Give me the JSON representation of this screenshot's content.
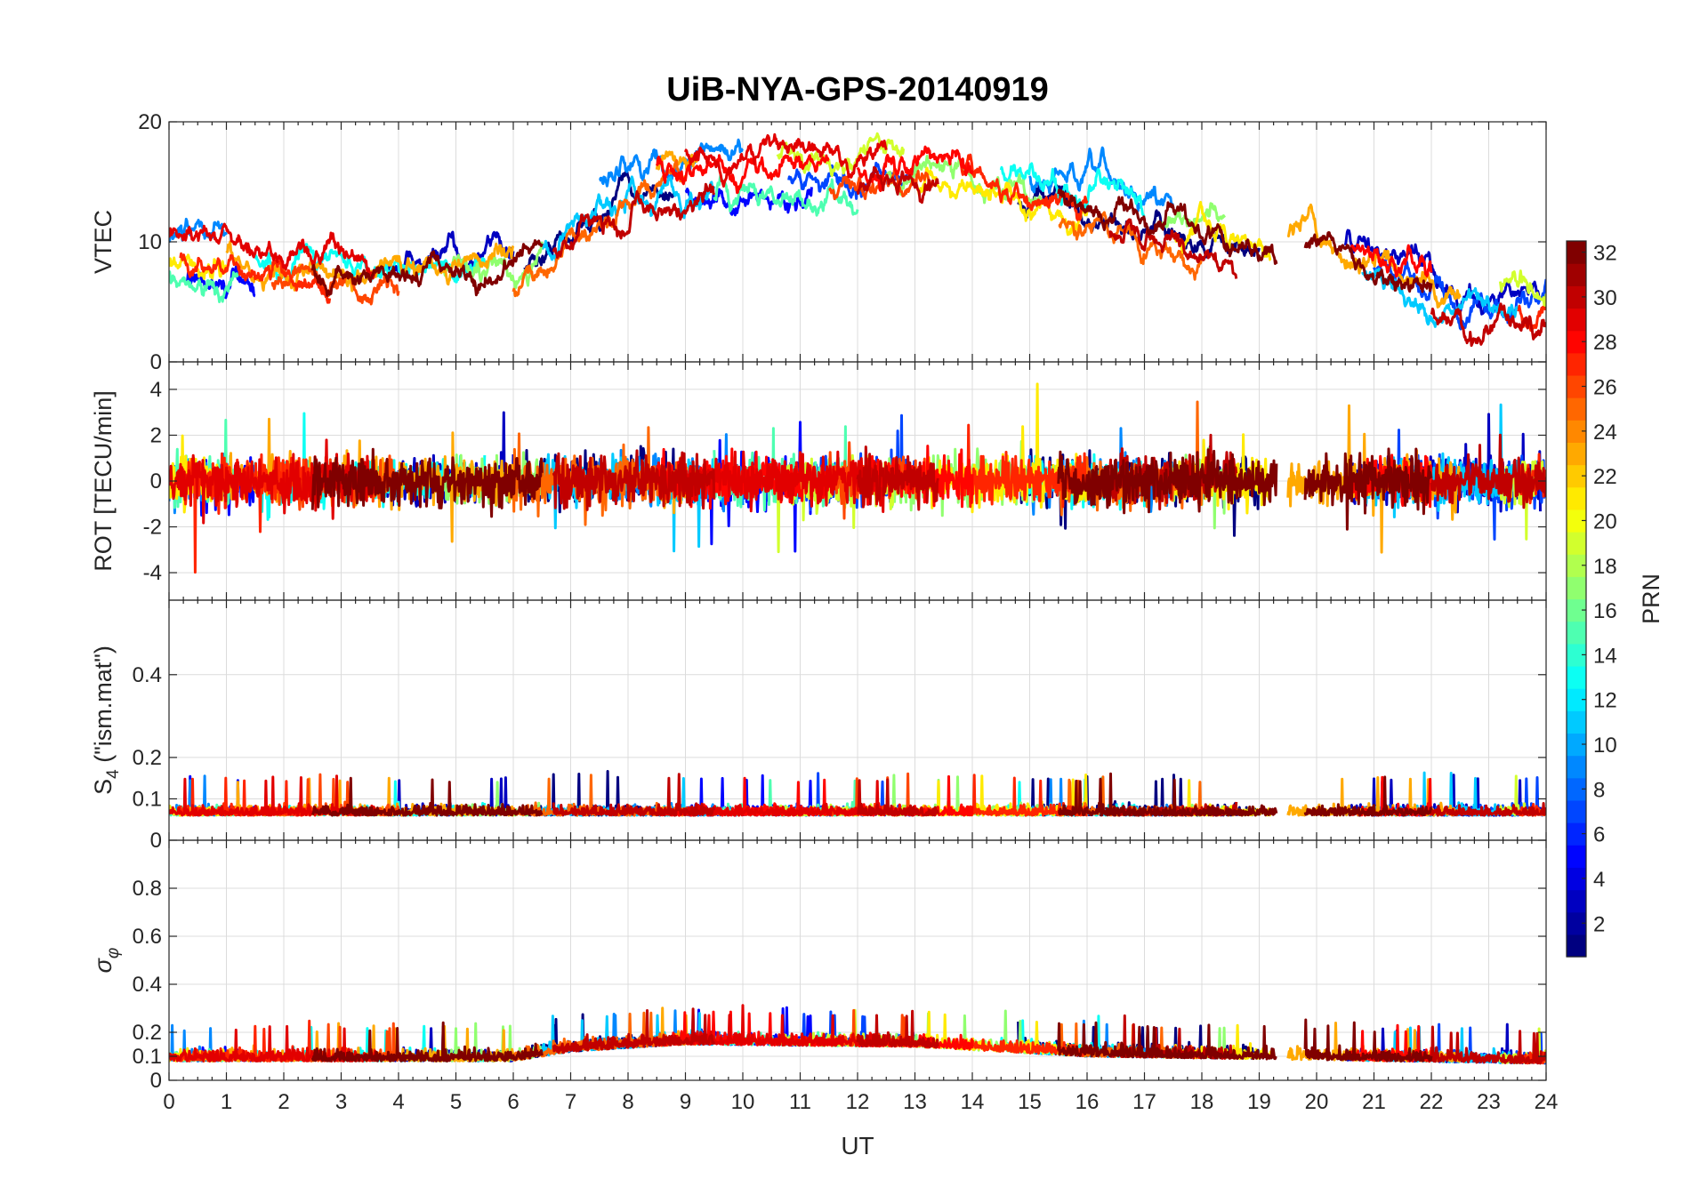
{
  "chart_data": {
    "type": "line",
    "title": "UiB-NYA-GPS-20140919",
    "xlabel": "UT",
    "xlim": [
      0,
      24
    ],
    "xticks": [
      0,
      1,
      2,
      3,
      4,
      5,
      6,
      7,
      8,
      9,
      10,
      11,
      12,
      13,
      14,
      15,
      16,
      17,
      18,
      19,
      20,
      21,
      22,
      23,
      24
    ],
    "colorbar": {
      "label": "PRN",
      "range": [
        1,
        32
      ],
      "ticks": [
        2,
        4,
        6,
        8,
        10,
        12,
        14,
        16,
        18,
        20,
        22,
        24,
        26,
        28,
        30,
        32
      ],
      "colormap": "jet"
    },
    "panels": [
      {
        "id": "vtec",
        "ylabel": "VTEC",
        "ylim": [
          0,
          20
        ],
        "yticks": [
          0,
          10,
          20
        ],
        "mean": [
          [
            0,
            9
          ],
          [
            2,
            7.5
          ],
          [
            3,
            7
          ],
          [
            5,
            7.5
          ],
          [
            6,
            8
          ],
          [
            7,
            12
          ],
          [
            8,
            15
          ],
          [
            9,
            15.5
          ],
          [
            10,
            15
          ],
          [
            11,
            15.5
          ],
          [
            12,
            15.5
          ],
          [
            13,
            16
          ],
          [
            14,
            15.5
          ],
          [
            15,
            14
          ],
          [
            16,
            13
          ],
          [
            17,
            11.5
          ],
          [
            18,
            11
          ],
          [
            19,
            10
          ],
          [
            20,
            9.5
          ],
          [
            21,
            8
          ],
          [
            22,
            6
          ],
          [
            23,
            4.5
          ],
          [
            24,
            5
          ]
        ],
        "spread": 2.5
      },
      {
        "id": "rot",
        "ylabel": "ROT [TECU/min]",
        "ylim": [
          -5.2,
          5.2
        ],
        "yticks": [
          -4,
          -2,
          0,
          2,
          4
        ],
        "mean": [
          [
            0,
            0
          ],
          [
            24,
            0
          ]
        ],
        "spread": 0.7
      },
      {
        "id": "s4",
        "ylabel": "S4 (\"ism.mat\")",
        "ylabel_main": "S",
        "ylabel_sub": "4",
        "ylabel_rest": " (\"ism.mat\")",
        "ylim": [
          0,
          0.58
        ],
        "yticks": [
          0,
          0.1,
          0.2,
          0.4
        ],
        "mean": [
          [
            0,
            0.06
          ],
          [
            24,
            0.06
          ]
        ],
        "spread": 0.015
      },
      {
        "id": "sigphi",
        "ylabel": "σφ",
        "ylabel_main": "σ",
        "ylabel_sub": "φ",
        "ylim": [
          0,
          1
        ],
        "yticks": [
          0,
          0.1,
          0.2,
          0.4,
          0.6,
          0.8
        ],
        "mean": [
          [
            0,
            0.08
          ],
          [
            6,
            0.08
          ],
          [
            7,
            0.12
          ],
          [
            9,
            0.15
          ],
          [
            13,
            0.14
          ],
          [
            16,
            0.1
          ],
          [
            24,
            0.07
          ]
        ],
        "spread": 0.03
      }
    ],
    "series": [
      {
        "name": "PRN 1",
        "prn": 1,
        "segments": [
          [
            6.2,
            8.8
          ],
          [
            14.8,
            19.0
          ]
        ]
      },
      {
        "name": "PRN 3",
        "prn": 3,
        "segments": [
          [
            3.8,
            6.0
          ],
          [
            20.5,
            23.9
          ]
        ]
      },
      {
        "name": "PRN 5",
        "prn": 5,
        "segments": [
          [
            9.0,
            11.2
          ],
          [
            0.3,
            1.5
          ]
        ]
      },
      {
        "name": "PRN 7",
        "prn": 7,
        "segments": [
          [
            10.8,
            13.0
          ],
          [
            21.0,
            24.0
          ]
        ]
      },
      {
        "name": "PRN 9",
        "prn": 9,
        "segments": [
          [
            0.0,
            1.0
          ],
          [
            7.5,
            10.0
          ],
          [
            15.0,
            17.5
          ]
        ]
      },
      {
        "name": "PRN 11",
        "prn": 11,
        "segments": [
          [
            6.5,
            9.5
          ],
          [
            20.8,
            23.5
          ]
        ]
      },
      {
        "name": "PRN 13",
        "prn": 13,
        "segments": [
          [
            1.5,
            5.5
          ],
          [
            14.5,
            17.0
          ]
        ]
      },
      {
        "name": "PRN 15",
        "prn": 15,
        "segments": [
          [
            9.5,
            12.0
          ],
          [
            0.0,
            1.2
          ]
        ]
      },
      {
        "name": "PRN 17",
        "prn": 17,
        "segments": [
          [
            4.8,
            6.5
          ],
          [
            12.5,
            15.2
          ],
          [
            17.3,
            18.4
          ]
        ]
      },
      {
        "name": "PRN 19",
        "prn": 19,
        "segments": [
          [
            10.6,
            12.8
          ],
          [
            23.2,
            24.0
          ]
        ]
      },
      {
        "name": "PRN 21",
        "prn": 21,
        "segments": [
          [
            0.0,
            1.0
          ],
          [
            13.0,
            16.0
          ],
          [
            17.5,
            19.2
          ]
        ]
      },
      {
        "name": "PRN 23",
        "prn": 23,
        "segments": [
          [
            1.0,
            6.0
          ],
          [
            8.5,
            9.2
          ],
          [
            19.5,
            22.5
          ]
        ]
      },
      {
        "name": "PRN 25",
        "prn": 25,
        "segments": [
          [
            6.0,
            9.0
          ],
          [
            15.5,
            18.0
          ]
        ]
      },
      {
        "name": "PRN 26",
        "prn": 26,
        "segments": [
          [
            1.8,
            4.0
          ],
          [
            11.5,
            13.3
          ]
        ]
      },
      {
        "name": "PRN 27",
        "prn": 27,
        "segments": [
          [
            0.2,
            2.8
          ],
          [
            13.8,
            16.0
          ],
          [
            23.5,
            24.0
          ]
        ]
      },
      {
        "name": "PRN 28",
        "prn": 28,
        "segments": [
          [
            8.5,
            11.5
          ],
          [
            12.0,
            14.0
          ],
          [
            20.6,
            22.0
          ]
        ]
      },
      {
        "name": "PRN 29",
        "prn": 29,
        "segments": [
          [
            0.0,
            3.6
          ],
          [
            9.0,
            12.5
          ]
        ]
      },
      {
        "name": "PRN 30",
        "prn": 30,
        "segments": [
          [
            6.7,
            9.5
          ],
          [
            12.0,
            13.4
          ],
          [
            16.4,
            18.6
          ],
          [
            22.0,
            24.0
          ]
        ]
      },
      {
        "name": "PRN 32",
        "prn": 32,
        "segments": [
          [
            2.5,
            6.5
          ],
          [
            15.5,
            19.3
          ],
          [
            19.8,
            22.0
          ]
        ]
      }
    ]
  }
}
